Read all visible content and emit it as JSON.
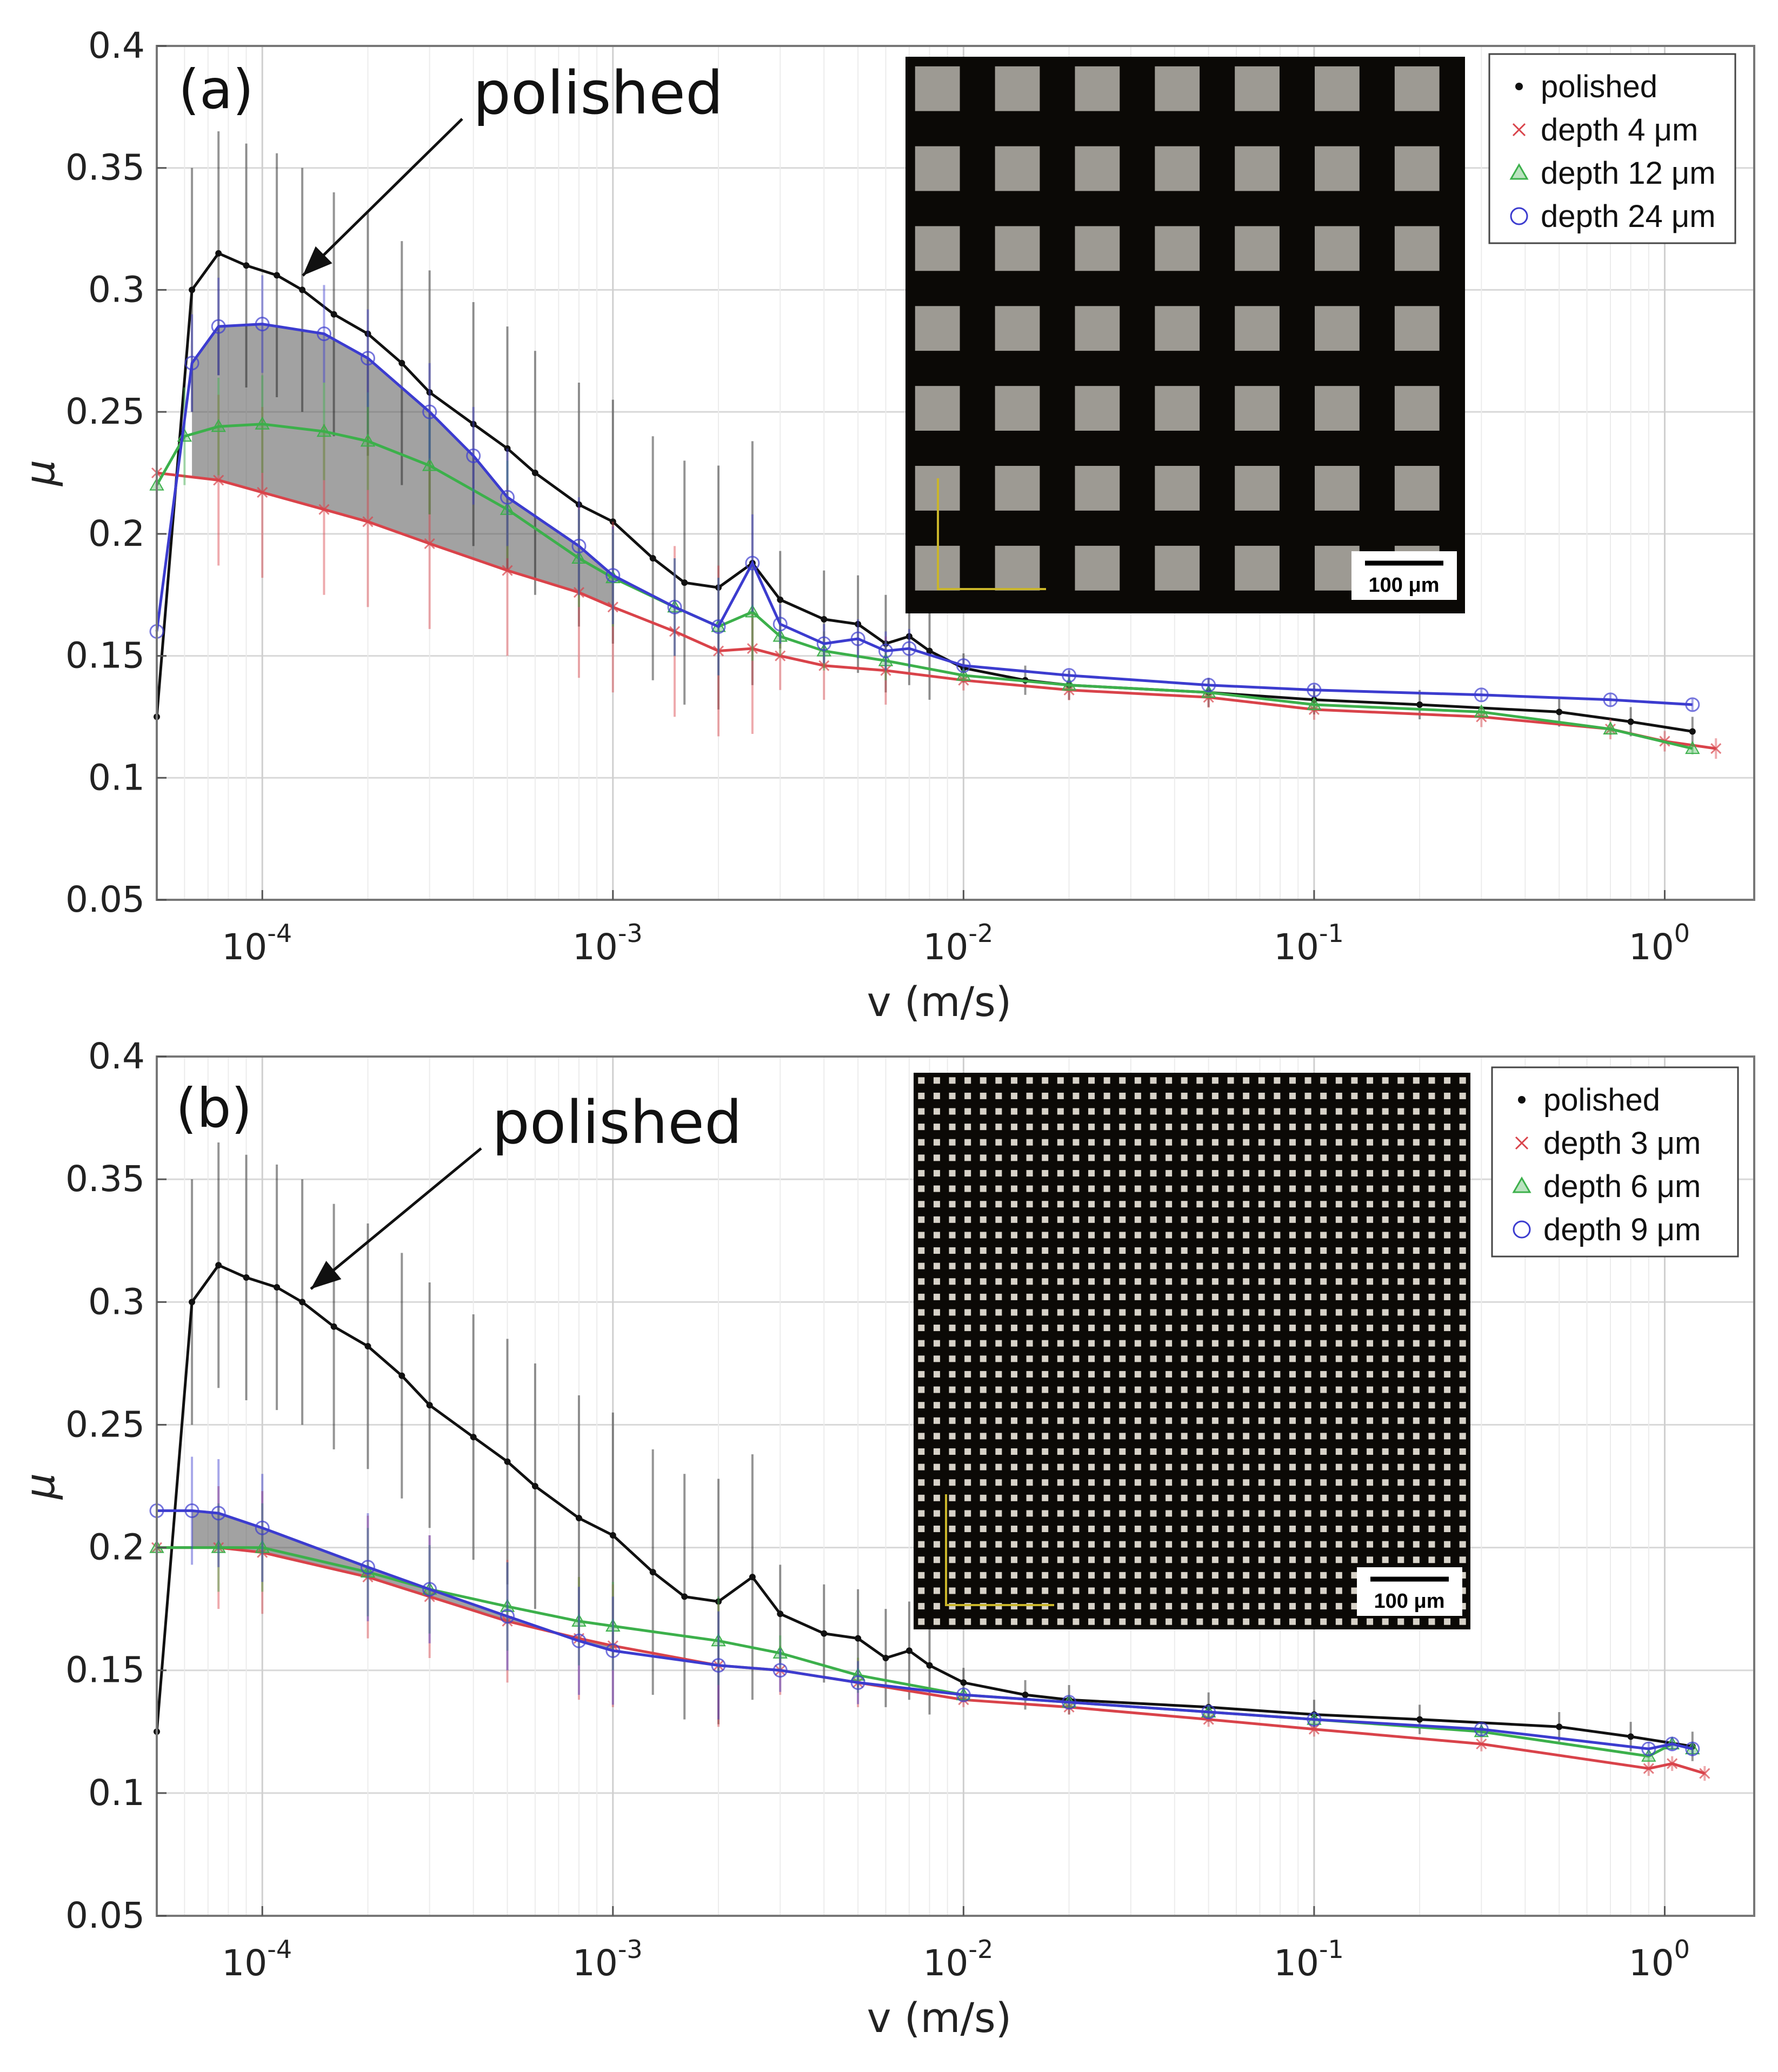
{
  "chart_data": [
    {
      "type": "line",
      "panel_label": "(a)",
      "xlabel": "v (m/s)",
      "ylabel": "μ",
      "xscale": "log",
      "xlim": [
        5e-05,
        1.8
      ],
      "ylim": [
        0.05,
        0.4
      ],
      "x_tick_labels": [
        {
          "v": 0.0001,
          "base": "10",
          "exp": "-4"
        },
        {
          "v": 0.001,
          "base": "10",
          "exp": "-3"
        },
        {
          "v": 0.01,
          "base": "10",
          "exp": "-2"
        },
        {
          "v": 0.1,
          "base": "10",
          "exp": "-1"
        },
        {
          "v": 1,
          "base": "10",
          "exp": "0"
        }
      ],
      "y_ticks": [
        0.05,
        0.1,
        0.15,
        0.2,
        0.25,
        0.3,
        0.35,
        0.4
      ],
      "y_tick_labels": [
        "0.05",
        "0.1",
        "0.15",
        "0.2",
        "0.25",
        "0.3",
        "0.35",
        "0.4"
      ],
      "grid": true,
      "legend_position": "top-right",
      "annotation": {
        "text": "polished",
        "points_to": [
          0.00012,
          0.305
        ]
      },
      "inset": {
        "scale_bar_label": "100 μm",
        "pattern": "coarse squares"
      },
      "shaded_band": {
        "x": [
          5e-05,
          0.001
        ],
        "between": [
          "depth 4 μm",
          "depth 24 μm"
        ],
        "color": "#555555"
      },
      "series": [
        {
          "name": "polished",
          "color": "#111111",
          "marker": "dot",
          "points": [
            [
              5e-05,
              0.125
            ],
            [
              6.3e-05,
              0.3
            ],
            [
              7.5e-05,
              0.315
            ],
            [
              9e-05,
              0.31
            ],
            [
              0.00011,
              0.306
            ],
            [
              0.00013,
              0.3
            ],
            [
              0.00016,
              0.29
            ],
            [
              0.0002,
              0.282
            ],
            [
              0.00025,
              0.27
            ],
            [
              0.0003,
              0.258
            ],
            [
              0.0004,
              0.245
            ],
            [
              0.0005,
              0.235
            ],
            [
              0.0006,
              0.225
            ],
            [
              0.0008,
              0.212
            ],
            [
              0.001,
              0.205
            ],
            [
              0.0013,
              0.19
            ],
            [
              0.0016,
              0.18
            ],
            [
              0.002,
              0.178
            ],
            [
              0.0025,
              0.188
            ],
            [
              0.003,
              0.173
            ],
            [
              0.004,
              0.165
            ],
            [
              0.005,
              0.163
            ],
            [
              0.006,
              0.155
            ],
            [
              0.007,
              0.158
            ],
            [
              0.008,
              0.152
            ],
            [
              0.01,
              0.145
            ],
            [
              0.015,
              0.14
            ],
            [
              0.02,
              0.138
            ],
            [
              0.05,
              0.135
            ],
            [
              0.1,
              0.132
            ],
            [
              0.2,
              0.13
            ],
            [
              0.5,
              0.127
            ],
            [
              0.8,
              0.123
            ],
            [
              1.2,
              0.119
            ]
          ],
          "err": 0.05
        },
        {
          "name": "depth 4 μm",
          "color": "#d9434a",
          "marker": "x",
          "points": [
            [
              5e-05,
              0.225
            ],
            [
              7.5e-05,
              0.222
            ],
            [
              0.0001,
              0.217
            ],
            [
              0.00015,
              0.21
            ],
            [
              0.0002,
              0.205
            ],
            [
              0.0003,
              0.196
            ],
            [
              0.0005,
              0.185
            ],
            [
              0.0008,
              0.176
            ],
            [
              0.001,
              0.17
            ],
            [
              0.0015,
              0.16
            ],
            [
              0.002,
              0.152
            ],
            [
              0.0025,
              0.153
            ],
            [
              0.003,
              0.15
            ],
            [
              0.004,
              0.146
            ],
            [
              0.006,
              0.144
            ],
            [
              0.01,
              0.14
            ],
            [
              0.02,
              0.136
            ],
            [
              0.05,
              0.133
            ],
            [
              0.1,
              0.128
            ],
            [
              0.3,
              0.125
            ],
            [
              0.7,
              0.12
            ],
            [
              1.0,
              0.115
            ],
            [
              1.4,
              0.112
            ]
          ],
          "err": 0.035
        },
        {
          "name": "depth 12 μm",
          "color": "#3cb04b",
          "marker": "triangle",
          "points": [
            [
              5e-05,
              0.22
            ],
            [
              6e-05,
              0.24
            ],
            [
              7.5e-05,
              0.244
            ],
            [
              0.0001,
              0.245
            ],
            [
              0.00015,
              0.242
            ],
            [
              0.0002,
              0.238
            ],
            [
              0.0003,
              0.228
            ],
            [
              0.0005,
              0.21
            ],
            [
              0.0008,
              0.19
            ],
            [
              0.001,
              0.182
            ],
            [
              0.0015,
              0.17
            ],
            [
              0.002,
              0.162
            ],
            [
              0.0025,
              0.168
            ],
            [
              0.003,
              0.158
            ],
            [
              0.004,
              0.152
            ],
            [
              0.006,
              0.148
            ],
            [
              0.01,
              0.142
            ],
            [
              0.02,
              0.138
            ],
            [
              0.05,
              0.135
            ],
            [
              0.1,
              0.13
            ],
            [
              0.3,
              0.127
            ],
            [
              0.7,
              0.12
            ],
            [
              1.2,
              0.112
            ]
          ],
          "err": 0.02
        },
        {
          "name": "depth 24 μm",
          "color": "#3c3ccf",
          "marker": "circle",
          "points": [
            [
              5e-05,
              0.16
            ],
            [
              6.3e-05,
              0.27
            ],
            [
              7.5e-05,
              0.285
            ],
            [
              0.0001,
              0.286
            ],
            [
              0.00015,
              0.282
            ],
            [
              0.0002,
              0.272
            ],
            [
              0.0003,
              0.25
            ],
            [
              0.0004,
              0.232
            ],
            [
              0.0005,
              0.215
            ],
            [
              0.0008,
              0.195
            ],
            [
              0.001,
              0.183
            ],
            [
              0.0015,
              0.17
            ],
            [
              0.002,
              0.162
            ],
            [
              0.0025,
              0.188
            ],
            [
              0.003,
              0.163
            ],
            [
              0.004,
              0.155
            ],
            [
              0.005,
              0.157
            ],
            [
              0.006,
              0.152
            ],
            [
              0.007,
              0.153
            ],
            [
              0.01,
              0.146
            ],
            [
              0.02,
              0.142
            ],
            [
              0.05,
              0.138
            ],
            [
              0.1,
              0.136
            ],
            [
              0.3,
              0.134
            ],
            [
              0.7,
              0.132
            ],
            [
              1.2,
              0.13
            ]
          ],
          "err": 0.02
        }
      ]
    },
    {
      "type": "line",
      "panel_label": "(b)",
      "xlabel": "v (m/s)",
      "ylabel": "μ",
      "xscale": "log",
      "xlim": [
        5e-05,
        1.8
      ],
      "ylim": [
        0.05,
        0.4
      ],
      "x_tick_labels": [
        {
          "v": 0.0001,
          "base": "10",
          "exp": "-4"
        },
        {
          "v": 0.001,
          "base": "10",
          "exp": "-3"
        },
        {
          "v": 0.01,
          "base": "10",
          "exp": "-2"
        },
        {
          "v": 0.1,
          "base": "10",
          "exp": "-1"
        },
        {
          "v": 1,
          "base": "10",
          "exp": "0"
        }
      ],
      "y_ticks": [
        0.05,
        0.1,
        0.15,
        0.2,
        0.25,
        0.3,
        0.35,
        0.4
      ],
      "y_tick_labels": [
        "0.05",
        "0.1",
        "0.15",
        "0.2",
        "0.25",
        "0.3",
        "0.35",
        "0.4"
      ],
      "grid": true,
      "legend_position": "top-right",
      "annotation": {
        "text": "polished",
        "points_to": [
          0.00012,
          0.305
        ]
      },
      "inset": {
        "scale_bar_label": "100 μm",
        "pattern": "fine squares"
      },
      "shaded_band": {
        "x": [
          5e-05,
          0.001
        ],
        "between": [
          "depth 3 μm",
          "depth 9 μm"
        ],
        "color": "#555555"
      },
      "series": [
        {
          "name": "polished",
          "color": "#111111",
          "marker": "dot",
          "points": [
            [
              5e-05,
              0.125
            ],
            [
              6.3e-05,
              0.3
            ],
            [
              7.5e-05,
              0.315
            ],
            [
              9e-05,
              0.31
            ],
            [
              0.00011,
              0.306
            ],
            [
              0.00013,
              0.3
            ],
            [
              0.00016,
              0.29
            ],
            [
              0.0002,
              0.282
            ],
            [
              0.00025,
              0.27
            ],
            [
              0.0003,
              0.258
            ],
            [
              0.0004,
              0.245
            ],
            [
              0.0005,
              0.235
            ],
            [
              0.0006,
              0.225
            ],
            [
              0.0008,
              0.212
            ],
            [
              0.001,
              0.205
            ],
            [
              0.0013,
              0.19
            ],
            [
              0.0016,
              0.18
            ],
            [
              0.002,
              0.178
            ],
            [
              0.0025,
              0.188
            ],
            [
              0.003,
              0.173
            ],
            [
              0.004,
              0.165
            ],
            [
              0.005,
              0.163
            ],
            [
              0.006,
              0.155
            ],
            [
              0.007,
              0.158
            ],
            [
              0.008,
              0.152
            ],
            [
              0.01,
              0.145
            ],
            [
              0.015,
              0.14
            ],
            [
              0.02,
              0.138
            ],
            [
              0.05,
              0.135
            ],
            [
              0.1,
              0.132
            ],
            [
              0.2,
              0.13
            ],
            [
              0.5,
              0.127
            ],
            [
              0.8,
              0.123
            ],
            [
              1.2,
              0.119
            ]
          ],
          "err": 0.05
        },
        {
          "name": "depth 3 μm",
          "color": "#d9434a",
          "marker": "x",
          "points": [
            [
              5e-05,
              0.2
            ],
            [
              7.5e-05,
              0.2
            ],
            [
              0.0001,
              0.198
            ],
            [
              0.0002,
              0.188
            ],
            [
              0.0003,
              0.18
            ],
            [
              0.0005,
              0.17
            ],
            [
              0.0008,
              0.163
            ],
            [
              0.001,
              0.16
            ],
            [
              0.002,
              0.152
            ],
            [
              0.003,
              0.15
            ],
            [
              0.005,
              0.145
            ],
            [
              0.01,
              0.138
            ],
            [
              0.02,
              0.135
            ],
            [
              0.05,
              0.13
            ],
            [
              0.1,
              0.126
            ],
            [
              0.3,
              0.12
            ],
            [
              0.9,
              0.11
            ],
            [
              1.05,
              0.112
            ],
            [
              1.3,
              0.108
            ]
          ],
          "err": 0.025
        },
        {
          "name": "depth 6 μm",
          "color": "#3cb04b",
          "marker": "triangle",
          "points": [
            [
              5e-05,
              0.2
            ],
            [
              7.5e-05,
              0.2
            ],
            [
              0.0001,
              0.2
            ],
            [
              0.0002,
              0.19
            ],
            [
              0.0003,
              0.183
            ],
            [
              0.0005,
              0.176
            ],
            [
              0.0008,
              0.17
            ],
            [
              0.001,
              0.168
            ],
            [
              0.002,
              0.162
            ],
            [
              0.003,
              0.157
            ],
            [
              0.005,
              0.148
            ],
            [
              0.01,
              0.14
            ],
            [
              0.02,
              0.137
            ],
            [
              0.05,
              0.133
            ],
            [
              0.1,
              0.13
            ],
            [
              0.3,
              0.125
            ],
            [
              0.9,
              0.115
            ],
            [
              1.05,
              0.12
            ],
            [
              1.2,
              0.118
            ]
          ],
          "err": 0.018
        },
        {
          "name": "depth 9 μm",
          "color": "#3c3ccf",
          "marker": "circle",
          "points": [
            [
              5e-05,
              0.215
            ],
            [
              6.3e-05,
              0.215
            ],
            [
              7.5e-05,
              0.214
            ],
            [
              0.0001,
              0.208
            ],
            [
              0.0002,
              0.192
            ],
            [
              0.0003,
              0.183
            ],
            [
              0.0005,
              0.172
            ],
            [
              0.0008,
              0.162
            ],
            [
              0.001,
              0.158
            ],
            [
              0.002,
              0.152
            ],
            [
              0.003,
              0.15
            ],
            [
              0.005,
              0.145
            ],
            [
              0.01,
              0.14
            ],
            [
              0.02,
              0.137
            ],
            [
              0.05,
              0.133
            ],
            [
              0.1,
              0.13
            ],
            [
              0.3,
              0.126
            ],
            [
              0.9,
              0.118
            ],
            [
              1.05,
              0.12
            ],
            [
              1.2,
              0.118
            ]
          ],
          "err": 0.022
        }
      ]
    }
  ]
}
